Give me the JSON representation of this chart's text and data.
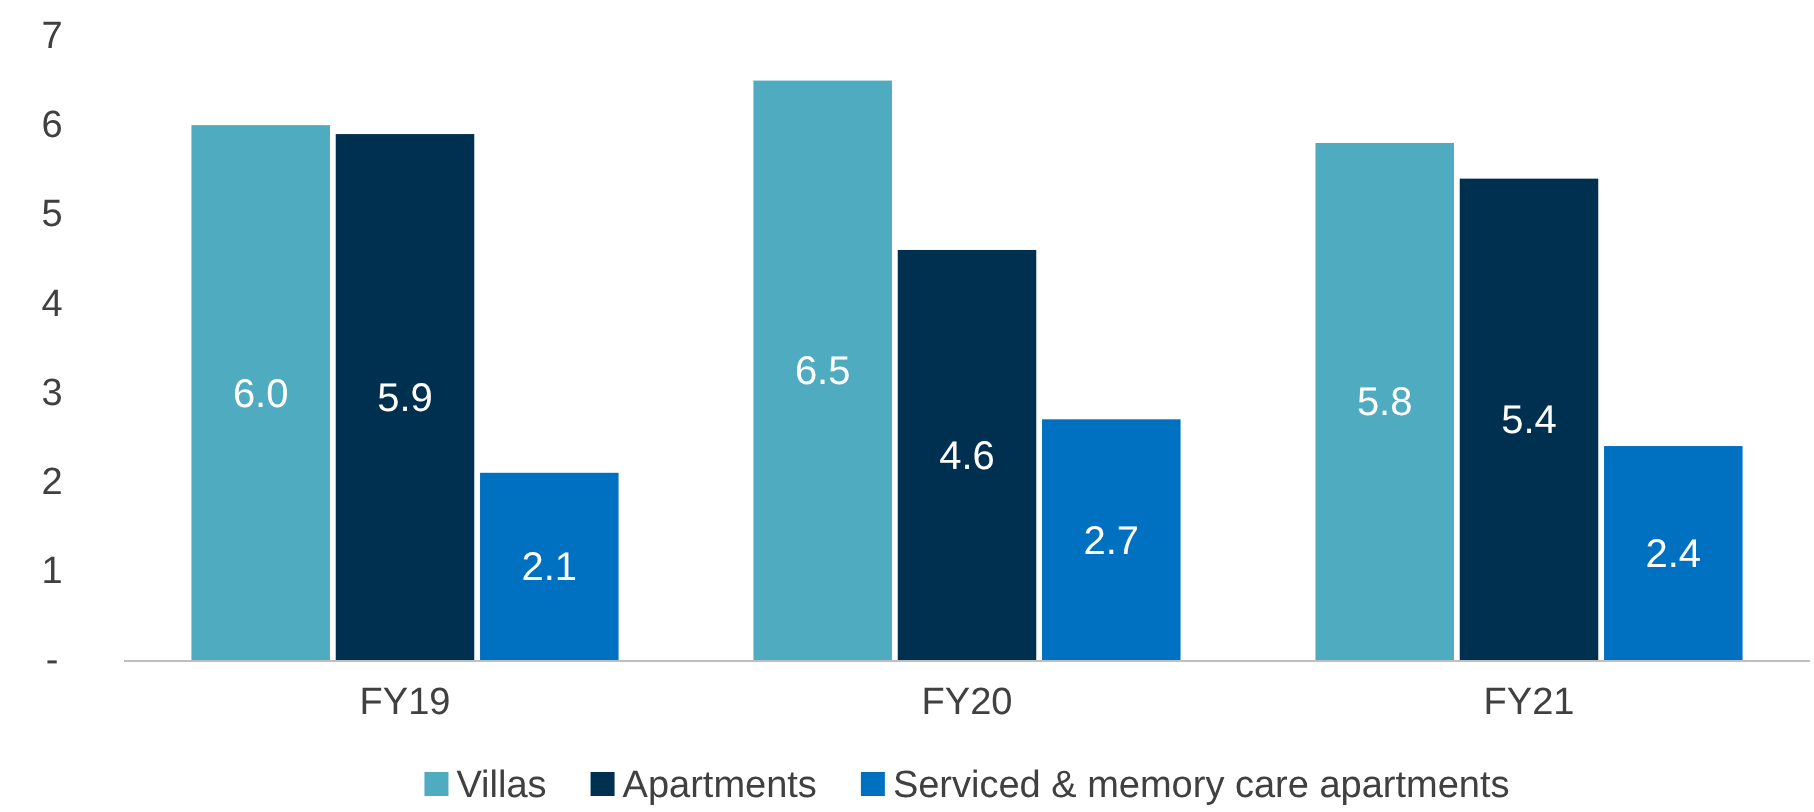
{
  "chart_data": {
    "type": "bar",
    "categories": [
      "FY19",
      "FY20",
      "FY21"
    ],
    "series": [
      {
        "name": "Villas",
        "color": "#4fabbf",
        "values": [
          6.0,
          6.5,
          5.8
        ],
        "value_labels": [
          "6.0",
          "6.5",
          "5.8"
        ]
      },
      {
        "name": "Apartments",
        "color": "#00304f",
        "values": [
          5.9,
          4.6,
          5.4
        ],
        "value_labels": [
          "5.9",
          "4.6",
          "5.4"
        ]
      },
      {
        "name": "Serviced & memory care apartments",
        "color": "#0070c0",
        "values": [
          2.1,
          2.7,
          2.4
        ],
        "value_labels": [
          "2.1",
          "2.7",
          "2.4"
        ]
      }
    ],
    "ylim": [
      0,
      7
    ],
    "yticks": [
      {
        "value": 0,
        "label": "-"
      },
      1,
      2,
      3,
      4,
      5,
      6,
      7
    ],
    "grid": false,
    "legend": "bottom"
  }
}
